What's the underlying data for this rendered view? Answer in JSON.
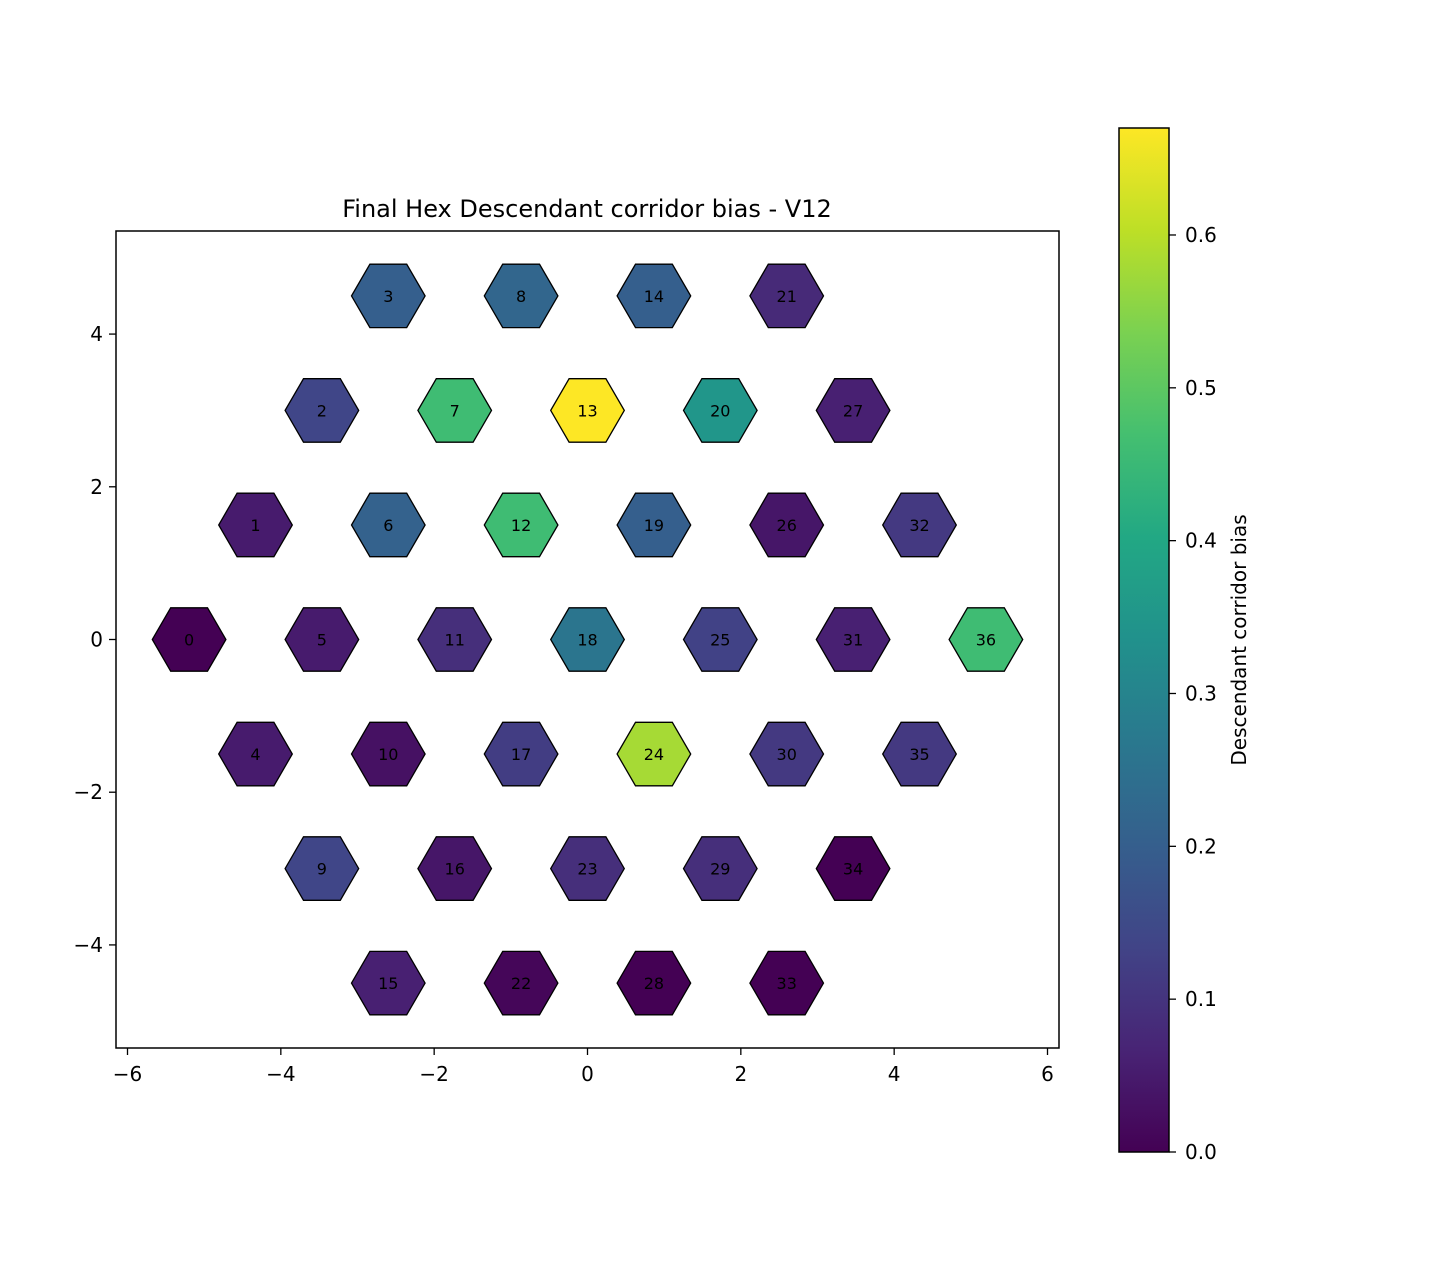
{
  "chart_data": {
    "type": "heatmap",
    "title": "Final Hex Descendant corridor bias - V12",
    "xlabel": "",
    "ylabel": "",
    "xlim": [
      -6.15,
      6.15
    ],
    "ylim": [
      -5.35,
      5.35
    ],
    "x_ticks": [
      -6,
      -4,
      -2,
      0,
      2,
      4,
      6
    ],
    "y_ticks": [
      -4,
      -2,
      0,
      2,
      4
    ],
    "x_tick_labels": [
      "−6",
      "−4",
      "−2",
      "0",
      "2",
      "4",
      "6"
    ],
    "y_tick_labels": [
      "−4",
      "−2",
      "0",
      "2",
      "4"
    ],
    "grid": false,
    "colormap": "viridis",
    "colorbar": {
      "label": "Descendant corridor bias",
      "min": 0.0,
      "max": 0.67,
      "ticks": [
        0.0,
        0.1,
        0.2,
        0.3,
        0.4,
        0.5,
        0.6
      ],
      "tick_labels": [
        "0.0",
        "0.1",
        "0.2",
        "0.3",
        "0.4",
        "0.5",
        "0.6"
      ]
    },
    "cells": [
      {
        "id": "0",
        "x": -5.196,
        "y": 0.0,
        "value": 0.0
      },
      {
        "id": "1",
        "x": -4.33,
        "y": 1.5,
        "value": 0.05
      },
      {
        "id": "2",
        "x": -3.464,
        "y": 3.0,
        "value": 0.14
      },
      {
        "id": "3",
        "x": -2.598,
        "y": 4.5,
        "value": 0.2
      },
      {
        "id": "4",
        "x": -4.33,
        "y": -1.5,
        "value": 0.05
      },
      {
        "id": "5",
        "x": -3.464,
        "y": 0.0,
        "value": 0.05
      },
      {
        "id": "6",
        "x": -2.598,
        "y": 1.5,
        "value": 0.21
      },
      {
        "id": "7",
        "x": -1.732,
        "y": 3.0,
        "value": 0.46
      },
      {
        "id": "8",
        "x": -0.866,
        "y": 4.5,
        "value": 0.22
      },
      {
        "id": "9",
        "x": -3.464,
        "y": -3.0,
        "value": 0.14
      },
      {
        "id": "10",
        "x": -2.598,
        "y": -1.5,
        "value": 0.03
      },
      {
        "id": "11",
        "x": -1.732,
        "y": 0.0,
        "value": 0.09
      },
      {
        "id": "12",
        "x": -0.866,
        "y": 1.5,
        "value": 0.46
      },
      {
        "id": "13",
        "x": 0.0,
        "y": 3.0,
        "value": 0.67
      },
      {
        "id": "14",
        "x": 0.866,
        "y": 4.5,
        "value": 0.2
      },
      {
        "id": "15",
        "x": -2.598,
        "y": -4.5,
        "value": 0.06
      },
      {
        "id": "16",
        "x": -1.732,
        "y": -3.0,
        "value": 0.04
      },
      {
        "id": "17",
        "x": -0.866,
        "y": -1.5,
        "value": 0.12
      },
      {
        "id": "18",
        "x": 0.0,
        "y": 0.0,
        "value": 0.26
      },
      {
        "id": "19",
        "x": 0.866,
        "y": 1.5,
        "value": 0.2
      },
      {
        "id": "20",
        "x": 1.732,
        "y": 3.0,
        "value": 0.35
      },
      {
        "id": "21",
        "x": 2.598,
        "y": 4.5,
        "value": 0.08
      },
      {
        "id": "22",
        "x": -0.866,
        "y": -4.5,
        "value": 0.01
      },
      {
        "id": "23",
        "x": 0.0,
        "y": -3.0,
        "value": 0.09
      },
      {
        "id": "24",
        "x": 0.866,
        "y": -1.5,
        "value": 0.58
      },
      {
        "id": "25",
        "x": 1.732,
        "y": 0.0,
        "value": 0.13
      },
      {
        "id": "26",
        "x": 2.598,
        "y": 1.5,
        "value": 0.04
      },
      {
        "id": "27",
        "x": 3.464,
        "y": 3.0,
        "value": 0.06
      },
      {
        "id": "28",
        "x": 0.866,
        "y": -4.5,
        "value": 0.0
      },
      {
        "id": "29",
        "x": 1.732,
        "y": -3.0,
        "value": 0.09
      },
      {
        "id": "30",
        "x": 2.598,
        "y": -1.5,
        "value": 0.11
      },
      {
        "id": "31",
        "x": 3.464,
        "y": 0.0,
        "value": 0.06
      },
      {
        "id": "32",
        "x": 4.33,
        "y": 1.5,
        "value": 0.11
      },
      {
        "id": "33",
        "x": 2.598,
        "y": -4.5,
        "value": 0.0
      },
      {
        "id": "34",
        "x": 3.464,
        "y": -3.0,
        "value": 0.0
      },
      {
        "id": "35",
        "x": 4.33,
        "y": -1.5,
        "value": 0.11
      },
      {
        "id": "36",
        "x": 5.196,
        "y": 0.0,
        "value": 0.46
      }
    ]
  }
}
